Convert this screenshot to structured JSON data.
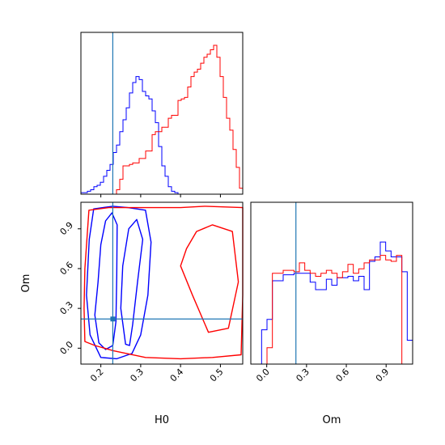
{
  "chart_data": {
    "type": "corner",
    "parameters": [
      "H0",
      "Om"
    ],
    "xlabel": "H0",
    "ylabel": "Om",
    "om_xlabel": "Om",
    "truth": {
      "H0": 0.23,
      "Om": 0.22
    },
    "colors": {
      "blue": "#0000ff",
      "red": "#ff0000",
      "truth": "#1f77b4",
      "axis": "#000000"
    },
    "h0_ticks": [
      "0.2",
      "0.3",
      "0.4",
      "0.5"
    ],
    "om_ticks": [
      "0.0",
      "0.3",
      "0.6",
      "0.9"
    ],
    "h0_range": [
      0.15,
      0.556
    ],
    "om_range": [
      -0.12,
      1.1
    ],
    "panels": {
      "h0_hist": {
        "bins": [
          0.15,
          0.556
        ],
        "series": [
          {
            "color": "blue",
            "values": [
              0.01,
              0.01,
              0.02,
              0.03,
              0.05,
              0.06,
              0.08,
              0.12,
              0.16,
              0.2,
              0.28,
              0.33,
              0.42,
              0.5,
              0.58,
              0.68,
              0.75,
              0.79,
              0.77,
              0.69,
              0.66,
              0.64,
              0.56,
              0.48,
              0.32,
              0.19,
              0.12,
              0.05,
              0.02,
              0.01,
              0,
              0,
              0,
              0,
              0,
              0,
              0,
              0,
              0,
              0,
              0,
              0,
              0,
              0,
              0,
              0,
              0,
              0,
              0,
              0
            ]
          },
          {
            "color": "red",
            "values": [
              0,
              0,
              0,
              0,
              0,
              0,
              0,
              0,
              0,
              0,
              0,
              0.03,
              0.1,
              0.19,
              0.19,
              0.2,
              0.21,
              0.21,
              0.24,
              0.24,
              0.29,
              0.29,
              0.4,
              0.42,
              0.42,
              0.45,
              0.45,
              0.51,
              0.53,
              0.53,
              0.63,
              0.64,
              0.65,
              0.72,
              0.79,
              0.82,
              0.84,
              0.88,
              0.92,
              0.94,
              0.97,
              1.0,
              0.92,
              0.79,
              0.65,
              0.51,
              0.43,
              0.3,
              0.18,
              0.04
            ]
          }
        ]
      },
      "om_hist": {
        "bins": [
          -0.12,
          1.1
        ],
        "series": [
          {
            "color": "blue",
            "values": [
              0,
              0,
              0.23,
              0.3,
              0.56,
              0.56,
              0.6,
              0.6,
              0.61,
              0.61,
              0.61,
              0.55,
              0.5,
              0.5,
              0.57,
              0.53,
              0.58,
              0.58,
              0.59,
              0.56,
              0.59,
              0.5,
              0.69,
              0.72,
              0.82,
              0.76,
              0.72,
              0.72,
              0.62,
              0.16
            ]
          },
          {
            "color": "red",
            "values": [
              0,
              0,
              0,
              0.11,
              0.61,
              0.61,
              0.63,
              0.63,
              0.62,
              0.68,
              0.63,
              0.61,
              0.59,
              0.61,
              0.63,
              0.61,
              0.58,
              0.62,
              0.67,
              0.61,
              0.64,
              0.68,
              0.7,
              0.7,
              0.73,
              0.7,
              0.69,
              0.73,
              0,
              0
            ]
          }
        ]
      },
      "joint": {
        "contours": [
          {
            "color": "blue",
            "level": "1sigma",
            "points": [
              [
                0.195,
                0.04
              ],
              [
                0.185,
                0.25
              ],
              [
                0.193,
                0.5
              ],
              [
                0.2,
                0.78
              ],
              [
                0.212,
                0.96
              ],
              [
                0.228,
                1.02
              ],
              [
                0.241,
                0.93
              ],
              [
                0.24,
                0.55
              ],
              [
                0.238,
                0.2
              ],
              [
                0.23,
                0.02
              ],
              [
                0.212,
                -0.01
              ]
            ]
          },
          {
            "color": "blue",
            "level": "1sigma",
            "points": [
              [
                0.262,
                0.03
              ],
              [
                0.25,
                0.3
              ],
              [
                0.255,
                0.62
              ],
              [
                0.27,
                0.9
              ],
              [
                0.29,
                0.97
              ],
              [
                0.305,
                0.82
              ],
              [
                0.292,
                0.5
              ],
              [
                0.28,
                0.18
              ],
              [
                0.272,
                0.02
              ]
            ]
          },
          {
            "color": "blue",
            "level": "2sigma",
            "points": [
              [
                0.2,
                -0.07
              ],
              [
                0.173,
                0.1
              ],
              [
                0.164,
                0.4
              ],
              [
                0.171,
                0.82
              ],
              [
                0.182,
                1.05
              ],
              [
                0.23,
                1.07
              ],
              [
                0.268,
                1.06
              ],
              [
                0.312,
                1.04
              ],
              [
                0.326,
                0.8
              ],
              [
                0.318,
                0.4
              ],
              [
                0.3,
                0.1
              ],
              [
                0.278,
                -0.04
              ],
              [
                0.24,
                -0.08
              ]
            ]
          },
          {
            "color": "red",
            "level": "1sigma",
            "points": [
              [
                0.4,
                0.62
              ],
              [
                0.43,
                0.4
              ],
              [
                0.47,
                0.12
              ],
              [
                0.52,
                0.15
              ],
              [
                0.545,
                0.5
              ],
              [
                0.53,
                0.88
              ],
              [
                0.48,
                0.93
              ],
              [
                0.44,
                0.88
              ],
              [
                0.415,
                0.75
              ]
            ]
          },
          {
            "color": "red",
            "level": "2sigma",
            "points": [
              [
                0.16,
                0.05
              ],
              [
                0.185,
                0.02
              ],
              [
                0.232,
                -0.02
              ],
              [
                0.312,
                -0.07
              ],
              [
                0.4,
                -0.08
              ],
              [
                0.48,
                -0.07
              ],
              [
                0.552,
                -0.05
              ],
              [
                0.556,
                0.4
              ],
              [
                0.556,
                1.06
              ],
              [
                0.46,
                1.07
              ],
              [
                0.4,
                1.06
              ],
              [
                0.33,
                1.06
              ],
              [
                0.28,
                1.06
              ],
              [
                0.22,
                1.06
              ],
              [
                0.17,
                1.04
              ],
              [
                0.16,
                0.6
              ],
              [
                0.158,
                0.3
              ]
            ]
          }
        ]
      }
    }
  }
}
